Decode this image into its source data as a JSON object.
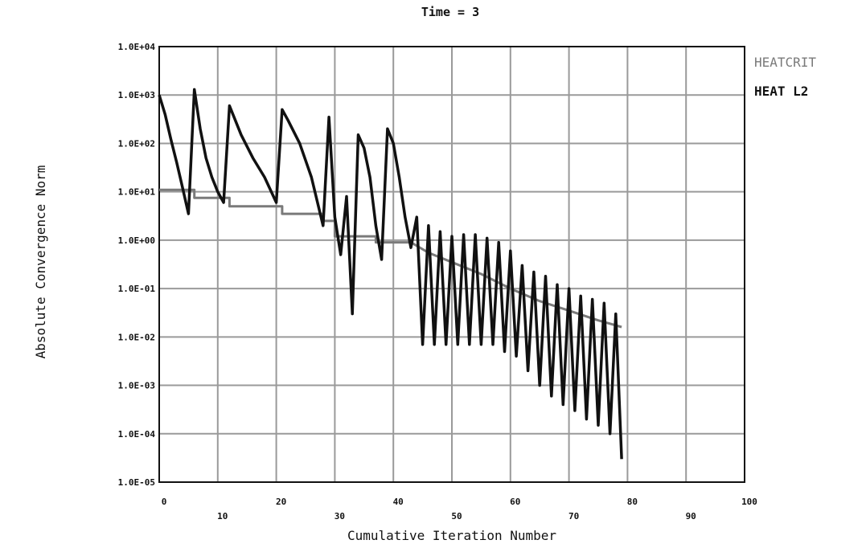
{
  "chart_data": {
    "type": "line",
    "title": "Time = 3",
    "xlabel": "Cumulative Iteration Number",
    "ylabel": "Absolute Convergence Norm",
    "xlim": [
      0,
      100
    ],
    "ylim": [
      1e-05,
      10000.0
    ],
    "yscale": "log",
    "grid": true,
    "legend_position": "top-right",
    "x_ticks": [
      0,
      10,
      20,
      30,
      40,
      50,
      60,
      70,
      80,
      90,
      100
    ],
    "x_tick_labels": [
      "0",
      "10",
      "20",
      "30",
      "40",
      "50",
      "60",
      "70",
      "80",
      "90",
      "100"
    ],
    "y_ticks": [
      1e-05,
      0.0001,
      0.001,
      0.01,
      0.1,
      1.0,
      10.0,
      100.0,
      1000.0,
      10000.0
    ],
    "y_tick_labels": [
      "1.0E-05",
      "1.0E-04",
      "1.0E-03",
      "1.0E-02",
      "1.0E-01",
      "1.0E+00",
      "1.0E+01",
      "1.0E+02",
      "1.0E+03",
      "1.0E+04"
    ],
    "series": [
      {
        "name": "HEATCRIT",
        "color": "#7a7a7a",
        "points": [
          [
            0,
            11
          ],
          [
            6,
            11
          ],
          [
            6,
            7.5
          ],
          [
            12,
            7.5
          ],
          [
            12,
            5
          ],
          [
            21,
            5
          ],
          [
            21,
            3.5
          ],
          [
            28,
            3.5
          ],
          [
            28,
            2.5
          ],
          [
            30,
            2.5
          ],
          [
            30,
            1.2
          ],
          [
            37,
            1.2
          ],
          [
            37,
            0.9
          ],
          [
            43,
            0.9
          ],
          [
            46,
            0.55
          ],
          [
            50,
            0.35
          ],
          [
            55,
            0.2
          ],
          [
            60,
            0.1
          ],
          [
            65,
            0.055
          ],
          [
            70,
            0.035
          ],
          [
            75,
            0.022
          ],
          [
            79,
            0.016
          ]
        ]
      },
      {
        "name": "HEAT L2",
        "color": "#111111",
        "points": [
          [
            0,
            1000
          ],
          [
            1,
            400
          ],
          [
            2,
            120
          ],
          [
            3,
            40
          ],
          [
            4,
            12
          ],
          [
            5,
            3.5
          ],
          [
            6,
            1300
          ],
          [
            7,
            200
          ],
          [
            8,
            50
          ],
          [
            9,
            20
          ],
          [
            10,
            10
          ],
          [
            11,
            6
          ],
          [
            12,
            600
          ],
          [
            14,
            150
          ],
          [
            16,
            50
          ],
          [
            18,
            20
          ],
          [
            20,
            6
          ],
          [
            21,
            500
          ],
          [
            22,
            300
          ],
          [
            24,
            100
          ],
          [
            26,
            20
          ],
          [
            28,
            2
          ],
          [
            29,
            350
          ],
          [
            30,
            3
          ],
          [
            31,
            0.5
          ],
          [
            32,
            8
          ],
          [
            33,
            0.03
          ],
          [
            34,
            150
          ],
          [
            35,
            80
          ],
          [
            36,
            20
          ],
          [
            37,
            2
          ],
          [
            38,
            0.4
          ],
          [
            39,
            200
          ],
          [
            40,
            100
          ],
          [
            41,
            20
          ],
          [
            42,
            3
          ],
          [
            43,
            0.7
          ],
          [
            44,
            3
          ],
          [
            45,
            0.007
          ],
          [
            46,
            2
          ],
          [
            47,
            0.007
          ],
          [
            48,
            1.5
          ],
          [
            49,
            0.007
          ],
          [
            50,
            1.2
          ],
          [
            51,
            0.007
          ],
          [
            52,
            1.3
          ],
          [
            53,
            0.007
          ],
          [
            54,
            1.3
          ],
          [
            55,
            0.007
          ],
          [
            56,
            1.1
          ],
          [
            57,
            0.007
          ],
          [
            58,
            0.9
          ],
          [
            59,
            0.005
          ],
          [
            60,
            0.6
          ],
          [
            61,
            0.004
          ],
          [
            62,
            0.3
          ],
          [
            63,
            0.002
          ],
          [
            64,
            0.22
          ],
          [
            65,
            0.001
          ],
          [
            66,
            0.18
          ],
          [
            67,
            0.0006
          ],
          [
            68,
            0.12
          ],
          [
            69,
            0.0004
          ],
          [
            70,
            0.1
          ],
          [
            71,
            0.0003
          ],
          [
            72,
            0.07
          ],
          [
            73,
            0.0002
          ],
          [
            74,
            0.06
          ],
          [
            75,
            0.00015
          ],
          [
            76,
            0.05
          ],
          [
            77,
            0.0001
          ],
          [
            78,
            0.03
          ],
          [
            79,
            3e-05
          ]
        ]
      }
    ]
  }
}
